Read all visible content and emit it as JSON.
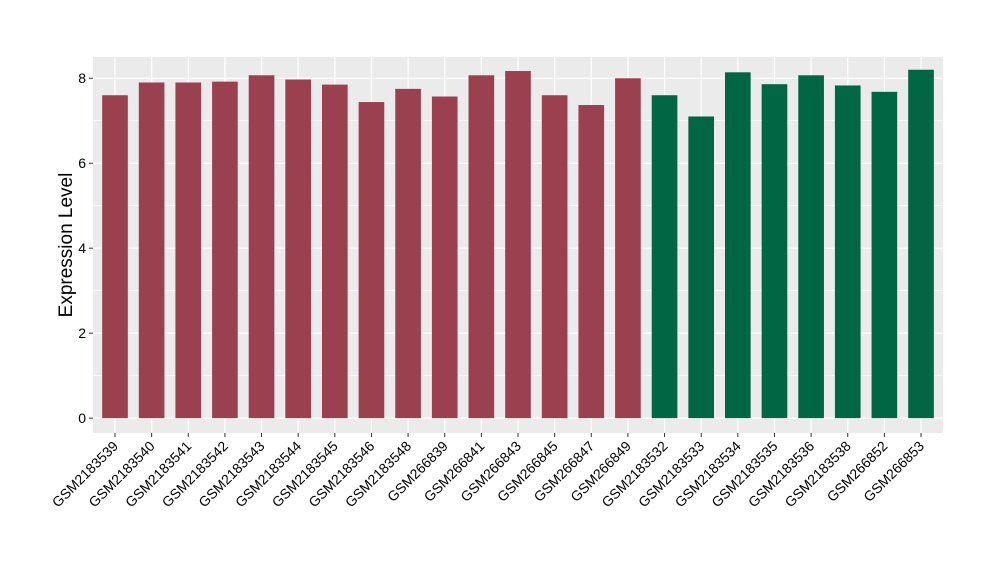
{
  "chart_data": {
    "type": "bar",
    "title": "",
    "xlabel": "",
    "ylabel": "Expression Level",
    "ylim": [
      -0.35,
      8.5
    ],
    "yticks": [
      0,
      2,
      4,
      6,
      8
    ],
    "grid": true,
    "legend": "none",
    "panel_color": "#ebebeb",
    "gridline_color": "#ffffff",
    "categories": [
      "GSM2183539",
      "GSM2183540",
      "GSM2183541",
      "GSM2183542",
      "GSM2183543",
      "GSM2183544",
      "GSM2183545",
      "GSM2183546",
      "GSM2183548",
      "GSM266839",
      "GSM266841",
      "GSM266843",
      "GSM266845",
      "GSM266847",
      "GSM266849",
      "GSM2183532",
      "GSM2183533",
      "GSM2183534",
      "GSM2183535",
      "GSM2183536",
      "GSM2183538",
      "GSM266852",
      "GSM266853"
    ],
    "values": [
      7.6,
      7.9,
      7.9,
      7.92,
      8.07,
      7.97,
      7.85,
      7.44,
      7.75,
      7.57,
      8.07,
      8.17,
      7.6,
      7.37,
      8.0,
      7.6,
      7.1,
      8.14,
      7.86,
      8.07,
      7.83,
      7.68,
      8.2
    ],
    "colors": [
      "#9b404f",
      "#9b404f",
      "#9b404f",
      "#9b404f",
      "#9b404f",
      "#9b404f",
      "#9b404f",
      "#9b404f",
      "#9b404f",
      "#9b404f",
      "#9b404f",
      "#9b404f",
      "#9b404f",
      "#9b404f",
      "#9b404f",
      "#006644",
      "#006644",
      "#006644",
      "#006644",
      "#006644",
      "#006644",
      "#006644",
      "#006644"
    ]
  }
}
